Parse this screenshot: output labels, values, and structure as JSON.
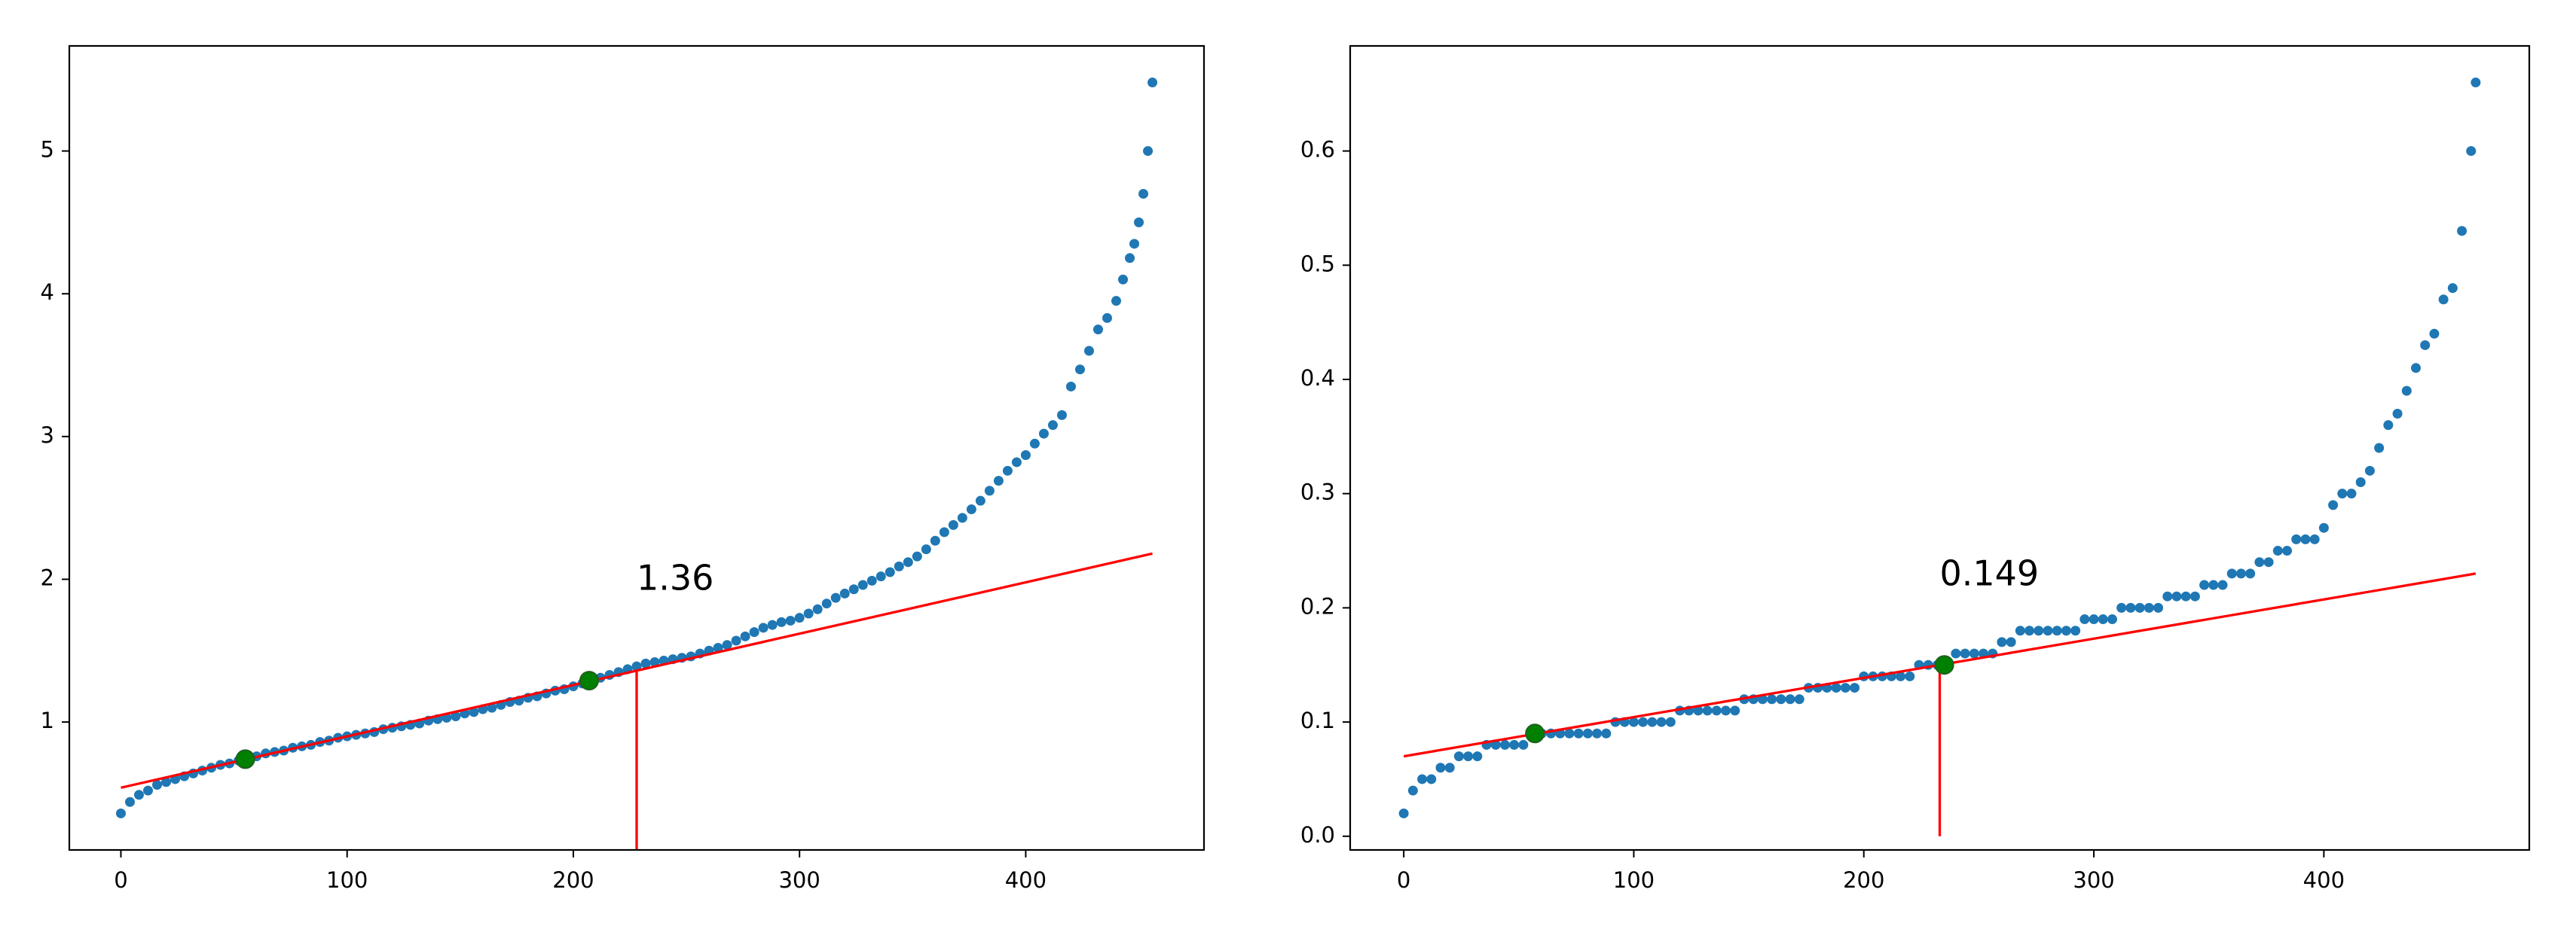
{
  "chart_data": [
    {
      "type": "scatter",
      "color": "#1f77b4",
      "x": [
        0,
        4,
        8,
        12,
        16,
        20,
        24,
        28,
        32,
        36,
        40,
        44,
        48,
        52,
        56,
        60,
        64,
        68,
        72,
        76,
        80,
        84,
        88,
        92,
        96,
        100,
        104,
        108,
        112,
        116,
        120,
        124,
        128,
        132,
        136,
        140,
        144,
        148,
        152,
        156,
        160,
        164,
        168,
        172,
        176,
        180,
        184,
        188,
        192,
        196,
        200,
        204,
        208,
        212,
        216,
        220,
        224,
        228,
        232,
        236,
        240,
        244,
        248,
        252,
        256,
        260,
        264,
        268,
        272,
        276,
        280,
        284,
        288,
        292,
        296,
        300,
        304,
        308,
        312,
        316,
        320,
        324,
        328,
        332,
        336,
        340,
        344,
        348,
        352,
        356,
        360,
        364,
        368,
        372,
        376,
        380,
        384,
        388,
        392,
        396,
        400,
        404,
        408,
        412,
        416,
        420,
        424,
        428,
        432,
        436,
        440,
        443,
        446,
        448,
        450,
        452,
        454,
        456
      ],
      "values": [
        0.36,
        0.44,
        0.49,
        0.52,
        0.56,
        0.58,
        0.6,
        0.62,
        0.64,
        0.66,
        0.68,
        0.7,
        0.71,
        0.73,
        0.74,
        0.76,
        0.78,
        0.79,
        0.8,
        0.82,
        0.83,
        0.84,
        0.86,
        0.87,
        0.89,
        0.9,
        0.91,
        0.92,
        0.93,
        0.95,
        0.96,
        0.97,
        0.98,
        0.99,
        1.01,
        1.02,
        1.03,
        1.04,
        1.06,
        1.07,
        1.09,
        1.1,
        1.12,
        1.14,
        1.15,
        1.17,
        1.18,
        1.2,
        1.22,
        1.23,
        1.25,
        1.27,
        1.29,
        1.31,
        1.33,
        1.35,
        1.37,
        1.39,
        1.41,
        1.42,
        1.43,
        1.44,
        1.45,
        1.46,
        1.48,
        1.5,
        1.52,
        1.54,
        1.57,
        1.6,
        1.63,
        1.66,
        1.68,
        1.7,
        1.71,
        1.73,
        1.76,
        1.79,
        1.83,
        1.87,
        1.9,
        1.93,
        1.96,
        1.99,
        2.02,
        2.05,
        2.09,
        2.12,
        2.16,
        2.21,
        2.27,
        2.33,
        2.38,
        2.43,
        2.49,
        2.55,
        2.62,
        2.69,
        2.76,
        2.82,
        2.87,
        2.95,
        3.02,
        3.08,
        3.15,
        3.35,
        3.47,
        3.6,
        3.75,
        3.83,
        3.95,
        4.1,
        4.25,
        4.35,
        4.5,
        4.7,
        5.0,
        5.48
      ],
      "fit_line": {
        "x": [
          0,
          456
        ],
        "y": [
          0.54,
          2.18
        ],
        "color": "#ff0000"
      },
      "vline": {
        "x": 228,
        "y": [
          0,
          1.36
        ],
        "color": "#ff0000"
      },
      "highlight_points": {
        "x": [
          55,
          207
        ],
        "y": [
          0.74,
          1.29
        ],
        "color": "#008000"
      },
      "annotation": "1.36",
      "xlim": [
        -22.8,
        478.8
      ],
      "ylim": [
        0.104,
        5.736
      ],
      "xticks": [
        0,
        100,
        200,
        300,
        400
      ],
      "yticks": [
        1,
        2,
        3,
        4,
        5
      ]
    },
    {
      "type": "scatter",
      "color": "#1f77b4",
      "x": [
        0,
        4,
        8,
        12,
        16,
        20,
        24,
        28,
        32,
        36,
        40,
        44,
        48,
        52,
        56,
        60,
        64,
        68,
        72,
        76,
        80,
        84,
        88,
        92,
        96,
        100,
        104,
        108,
        112,
        116,
        120,
        124,
        128,
        132,
        136,
        140,
        144,
        148,
        152,
        156,
        160,
        164,
        168,
        172,
        176,
        180,
        184,
        188,
        192,
        196,
        200,
        204,
        208,
        212,
        216,
        220,
        224,
        228,
        232,
        236,
        240,
        244,
        248,
        252,
        256,
        260,
        264,
        268,
        272,
        276,
        280,
        284,
        288,
        292,
        296,
        300,
        304,
        308,
        312,
        316,
        320,
        324,
        328,
        332,
        336,
        340,
        344,
        348,
        352,
        356,
        360,
        364,
        368,
        372,
        376,
        380,
        384,
        388,
        392,
        396,
        400,
        404,
        408,
        412,
        416,
        420,
        424,
        428,
        432,
        436,
        440,
        444,
        448,
        452,
        456,
        460,
        464,
        466
      ],
      "values": [
        0.02,
        0.04,
        0.05,
        0.05,
        0.06,
        0.06,
        0.07,
        0.07,
        0.07,
        0.08,
        0.08,
        0.08,
        0.08,
        0.08,
        0.09,
        0.09,
        0.09,
        0.09,
        0.09,
        0.09,
        0.09,
        0.09,
        0.09,
        0.1,
        0.1,
        0.1,
        0.1,
        0.1,
        0.1,
        0.1,
        0.11,
        0.11,
        0.11,
        0.11,
        0.11,
        0.11,
        0.11,
        0.12,
        0.12,
        0.12,
        0.12,
        0.12,
        0.12,
        0.12,
        0.13,
        0.13,
        0.13,
        0.13,
        0.13,
        0.13,
        0.14,
        0.14,
        0.14,
        0.14,
        0.14,
        0.14,
        0.15,
        0.15,
        0.15,
        0.15,
        0.16,
        0.16,
        0.16,
        0.16,
        0.16,
        0.17,
        0.17,
        0.18,
        0.18,
        0.18,
        0.18,
        0.18,
        0.18,
        0.18,
        0.19,
        0.19,
        0.19,
        0.19,
        0.2,
        0.2,
        0.2,
        0.2,
        0.2,
        0.21,
        0.21,
        0.21,
        0.21,
        0.22,
        0.22,
        0.22,
        0.23,
        0.23,
        0.23,
        0.24,
        0.24,
        0.25,
        0.25,
        0.26,
        0.26,
        0.26,
        0.27,
        0.29,
        0.3,
        0.3,
        0.31,
        0.32,
        0.34,
        0.36,
        0.37,
        0.39,
        0.41,
        0.43,
        0.44,
        0.47,
        0.48,
        0.53,
        0.6,
        0.66
      ],
      "fit_line": {
        "x": [
          0,
          466
        ],
        "y": [
          0.07,
          0.23
        ],
        "color": "#ff0000"
      },
      "vline": {
        "x": 233,
        "y": [
          0,
          0.149
        ],
        "color": "#ff0000"
      },
      "highlight_points": {
        "x": [
          57,
          235
        ],
        "y": [
          0.09,
          0.15
        ],
        "color": "#008000"
      },
      "annotation": "0.149",
      "xlim": [
        -23.3,
        489.3
      ],
      "ylim": [
        -0.012,
        0.692
      ],
      "xticks": [
        0,
        100,
        200,
        300,
        400
      ],
      "yticks": [
        {
          "value": 0,
          "label": "0.0"
        },
        0.1,
        0.2,
        0.3,
        0.4,
        0.5,
        0.6
      ]
    }
  ]
}
